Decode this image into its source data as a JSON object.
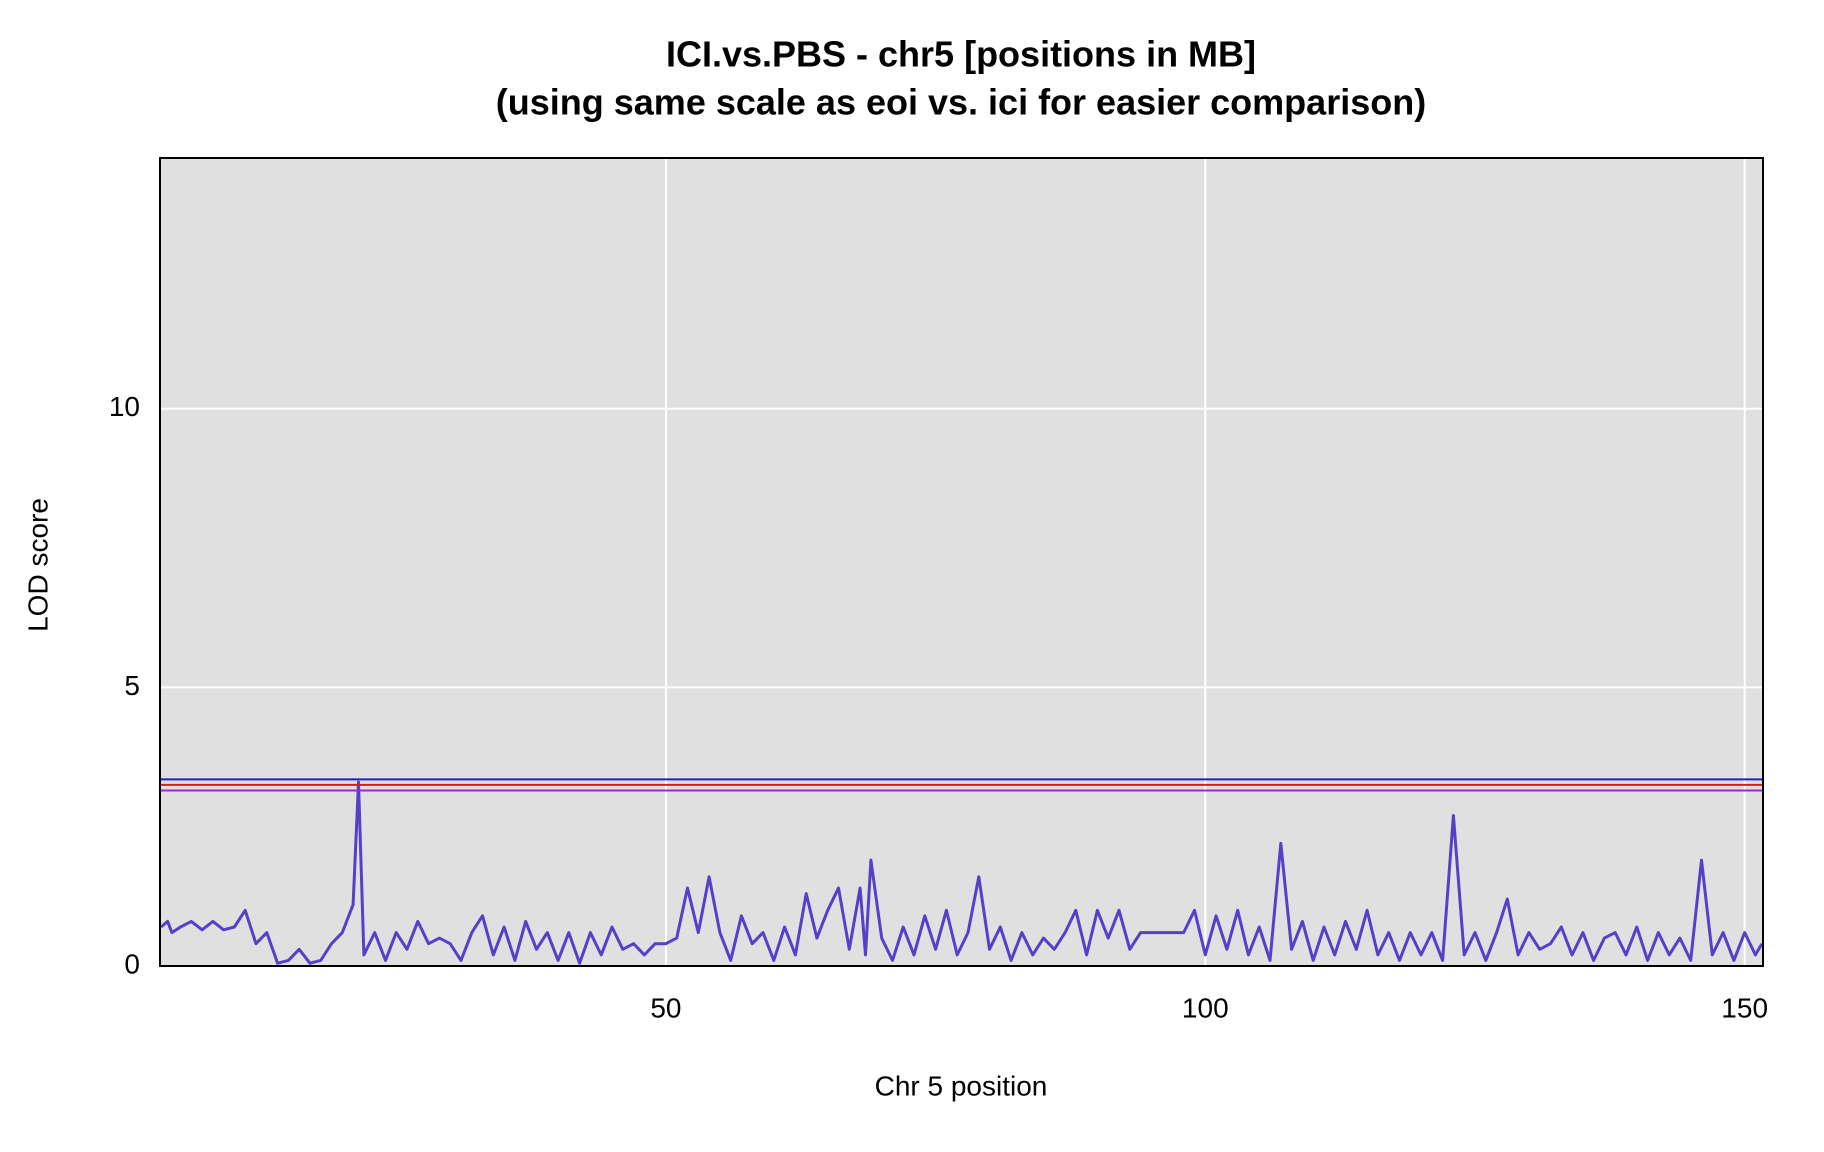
{
  "chart_data": {
    "type": "line",
    "title": "ICI.vs.PBS - chr5 [positions in MB]",
    "subtitle": "(using same scale as eoi vs. ici for easier comparison)",
    "x_label": "Chr 5 position",
    "y_label": "LOD score",
    "xlim": [
      3.1,
      151.7
    ],
    "ylim": [
      0,
      14.5
    ],
    "xticks": [
      50,
      100,
      150
    ],
    "yticks": [
      0,
      5,
      10
    ],
    "grid": true,
    "background": "#e0e0e0",
    "thresholds": [
      {
        "value": 3.35,
        "color": "#2020c0"
      },
      {
        "value": 3.25,
        "color": "#d02020"
      },
      {
        "value": 3.15,
        "color": "#9030d0"
      }
    ],
    "series": [
      {
        "name": "ICI.vs.PBS",
        "color": "#5540c8",
        "x": [
          3.2,
          3.8,
          4.2,
          5,
          6,
          7,
          8,
          9,
          10,
          11,
          12,
          13,
          14,
          15,
          16,
          17,
          18,
          19,
          20,
          21,
          21.5,
          22,
          23,
          24,
          25,
          26,
          27,
          28,
          29,
          30,
          31,
          32,
          33,
          34,
          35,
          36,
          37,
          38,
          39,
          40,
          41,
          42,
          43,
          44,
          45,
          46,
          47,
          48,
          49,
          50,
          51,
          52,
          53,
          54,
          55,
          56,
          57,
          58,
          59,
          60,
          61,
          62,
          63,
          64,
          65,
          66,
          67,
          68,
          68.5,
          69,
          70,
          71,
          72,
          73,
          74,
          75,
          76,
          77,
          78,
          79,
          80,
          81,
          82,
          83,
          84,
          85,
          86,
          87,
          88,
          89,
          90,
          91,
          92,
          93,
          94,
          95,
          96,
          97,
          98,
          99,
          100,
          101,
          102,
          103,
          104,
          105,
          106,
          107,
          108,
          109,
          110,
          111,
          112,
          113,
          114,
          115,
          116,
          117,
          118,
          119,
          120,
          121,
          122,
          123,
          124,
          125,
          126,
          127,
          128,
          129,
          130,
          131,
          132,
          133,
          134,
          135,
          136,
          137,
          138,
          139,
          140,
          141,
          142,
          143,
          144,
          145,
          146,
          147,
          148,
          149,
          150,
          151,
          151.6
        ],
        "values": [
          0.7,
          0.8,
          0.6,
          0.7,
          0.8,
          0.65,
          0.8,
          0.65,
          0.7,
          1.0,
          0.4,
          0.6,
          0.05,
          0.1,
          0.3,
          0.05,
          0.1,
          0.4,
          0.6,
          1.1,
          3.3,
          0.2,
          0.6,
          0.1,
          0.6,
          0.3,
          0.8,
          0.4,
          0.5,
          0.4,
          0.1,
          0.6,
          0.9,
          0.2,
          0.7,
          0.1,
          0.8,
          0.3,
          0.6,
          0.1,
          0.6,
          0.05,
          0.6,
          0.2,
          0.7,
          0.3,
          0.4,
          0.2,
          0.4,
          0.4,
          0.5,
          1.4,
          0.6,
          1.6,
          0.6,
          0.1,
          0.9,
          0.4,
          0.6,
          0.1,
          0.7,
          0.2,
          1.3,
          0.5,
          1.0,
          1.4,
          0.3,
          1.4,
          0.2,
          1.9,
          0.5,
          0.1,
          0.7,
          0.2,
          0.9,
          0.3,
          1.0,
          0.2,
          0.6,
          1.6,
          0.3,
          0.7,
          0.1,
          0.6,
          0.2,
          0.5,
          0.3,
          0.6,
          1.0,
          0.2,
          1.0,
          0.5,
          1.0,
          0.3,
          0.6,
          0.6,
          0.6,
          0.6,
          0.6,
          1.0,
          0.2,
          0.9,
          0.3,
          1.0,
          0.2,
          0.7,
          0.1,
          2.2,
          0.3,
          0.8,
          0.1,
          0.7,
          0.2,
          0.8,
          0.3,
          1.0,
          0.2,
          0.6,
          0.1,
          0.6,
          0.2,
          0.6,
          0.1,
          2.7,
          0.2,
          0.6,
          0.1,
          0.6,
          1.2,
          0.2,
          0.6,
          0.3,
          0.4,
          0.7,
          0.2,
          0.6,
          0.1,
          0.5,
          0.6,
          0.2,
          0.7,
          0.1,
          0.6,
          0.2,
          0.5,
          0.1,
          1.9,
          0.2,
          0.6,
          0.1,
          0.6,
          0.2,
          0.4
        ]
      }
    ]
  }
}
